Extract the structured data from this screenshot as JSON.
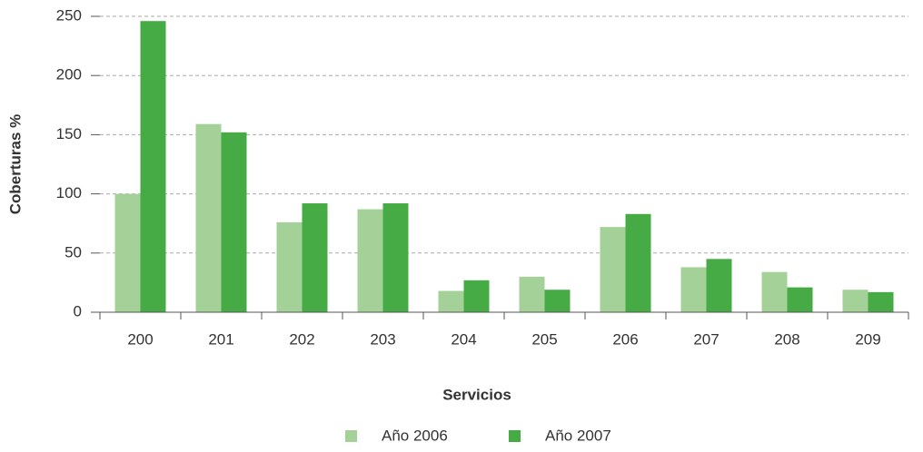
{
  "chart_data": {
    "type": "bar",
    "x_label": "Servicios",
    "y_label": "Coberturas %",
    "categories": [
      "200",
      "201",
      "202",
      "203",
      "204",
      "205",
      "206",
      "207",
      "208",
      "209"
    ],
    "series": [
      {
        "name": "Año 2006",
        "color": "#a3d197",
        "values": [
          100,
          159,
          76,
          87,
          18,
          30,
          72,
          38,
          34,
          19
        ]
      },
      {
        "name": "Año 2007",
        "color": "#46ab45",
        "values": [
          246,
          152,
          92,
          92,
          27,
          19,
          83,
          45,
          21,
          17
        ]
      }
    ],
    "ylim": [
      0,
      250
    ],
    "yticks": [
      0,
      50,
      100,
      150,
      200,
      250
    ],
    "grid": true,
    "legend": "bottom"
  }
}
